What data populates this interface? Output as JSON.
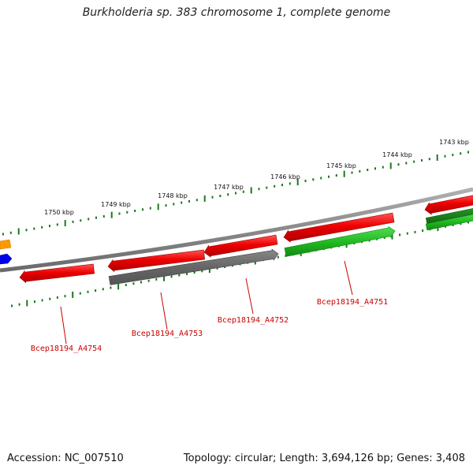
{
  "title": "Burkholderia sp. 383 chromosome 1, complete genome",
  "footer": {
    "accession": "Accession: NC_007510",
    "topology": "Topology: circular; Length: 3,694,126 bp; Genes: 3,408"
  },
  "ruler": {
    "labels": [
      "1750 kbp",
      "1749 kbp",
      "1748 kbp",
      "1747 kbp",
      "1746 kbp",
      "1745 kbp",
      "1744 kbp",
      "1743 kbp"
    ]
  },
  "genes": [
    {
      "locus": "Bcep18194_A4754",
      "color": "#ee0000"
    },
    {
      "locus": "Bcep18194_A4753",
      "color": "#ee0000"
    },
    {
      "locus": "Bcep18194_A4752",
      "color": "#666666"
    },
    {
      "locus": "Bcep18194_A4751",
      "color": "#22bb22"
    }
  ],
  "colors": {
    "forward": "#ee0000",
    "pseudo": "#666666",
    "reverse": "#22bb22",
    "dark_green": "#1a7a1a",
    "orange": "#ff9900",
    "blue": "#0000ee",
    "ruler": "#1a7a1a",
    "backbone": "#8a8a8a"
  }
}
